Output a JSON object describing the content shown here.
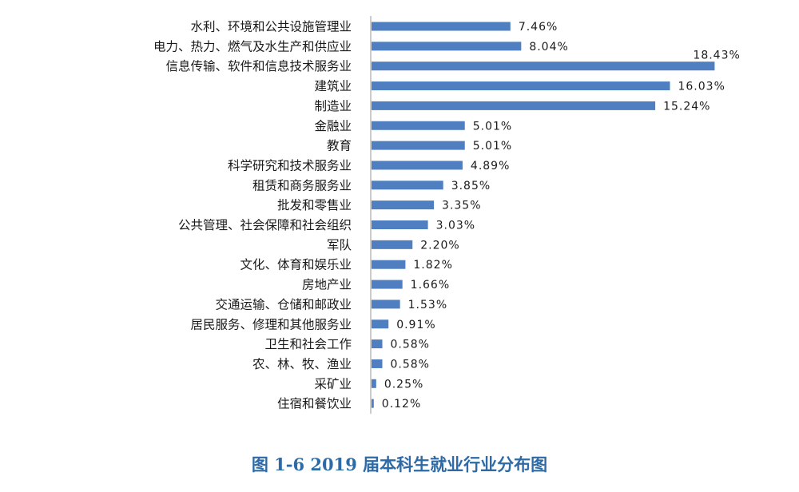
{
  "chart_data": {
    "type": "bar",
    "orientation": "horizontal",
    "title": "",
    "caption": "图 1-6    2019 届本科生就业行业分布图",
    "bar_color": "#4f7fc0",
    "categories": [
      "水利、环境和公共设施管理业",
      "电力、热力、燃气及水生产和供应业",
      "信息传输、软件和信息技术服务业",
      "建筑业",
      "制造业",
      "金融业",
      "教育",
      "科学研究和技术服务业",
      "租赁和商务服务业",
      "批发和零售业",
      "公共管理、社会保障和社会组织",
      "军队",
      "文化、体育和娱乐业",
      "房地产业",
      "交通运输、仓储和邮政业",
      "居民服务、修理和其他服务业",
      "卫生和社会工作",
      "农、林、牧、渔业",
      "采矿业",
      "住宿和餐饮业"
    ],
    "values": [
      7.46,
      8.04,
      18.43,
      16.03,
      15.24,
      5.01,
      5.01,
      4.89,
      3.85,
      3.35,
      3.03,
      2.2,
      1.82,
      1.66,
      1.53,
      0.91,
      0.58,
      0.58,
      0.25,
      0.12
    ],
    "value_labels": [
      "7.46%",
      "8.04%",
      "18.43%",
      "16.03%",
      "15.24%",
      "5.01%",
      "5.01%",
      "4.89%",
      "3.85%",
      "3.35%",
      "3.03%",
      "2.20%",
      "1.82%",
      "1.66%",
      "1.53%",
      "0.91%",
      "0.58%",
      "0.58%",
      "0.25%",
      "0.12%"
    ],
    "grid": false,
    "legend": false
  }
}
